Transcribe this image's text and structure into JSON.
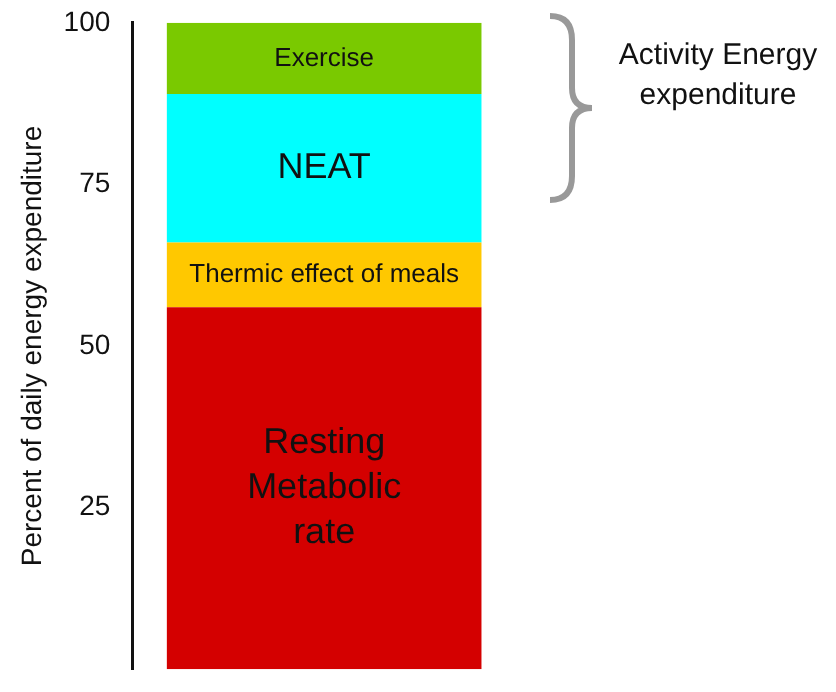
{
  "chart_data": {
    "type": "bar",
    "stacked": true,
    "categories": [
      null
    ],
    "series": [
      {
        "name": "Resting Metabolic rate",
        "color": "#d40000",
        "values": [
          56
        ]
      },
      {
        "name": "Thermic effect of meals",
        "color": "#ffc800",
        "values": [
          10
        ]
      },
      {
        "name": "NEAT",
        "color": "#00ffff",
        "values": [
          23
        ]
      },
      {
        "name": "Exercise",
        "color": "#7ac900",
        "values": [
          11
        ]
      }
    ],
    "ylabel": "Percent of daily energy expenditure",
    "ylim": [
      0,
      100
    ],
    "yticks": [
      25,
      50,
      75,
      100
    ],
    "annotations": [
      "Activity Energy expenditure"
    ],
    "grid": false,
    "legend": false,
    "tick_labels": "y"
  }
}
